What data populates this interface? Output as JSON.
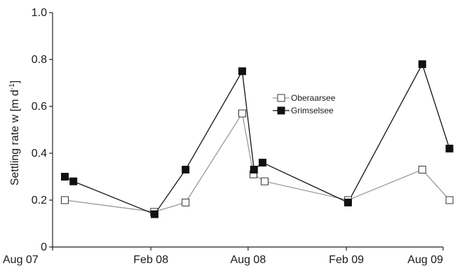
{
  "chart_data": {
    "type": "line",
    "title": "",
    "xlabel": "",
    "ylabel": "Settling rate w [m d",
    "ylabel_sup": "-1",
    "ylabel_close": "]",
    "ylim": [
      0,
      1.0
    ],
    "yticks": [
      "0",
      "0.2",
      "0.4",
      "0.6",
      "0.8",
      "1.0"
    ],
    "ytick_values": [
      0,
      0.2,
      0.4,
      0.6,
      0.8,
      1.0
    ],
    "xlim": [
      "2007-08-01",
      "2009-08-01"
    ],
    "xticks": [
      "Aug 07",
      "Feb 08",
      "Aug 08",
      "Feb 09",
      "Aug 09"
    ],
    "xtick_values": [
      "2007-08-01",
      "2008-02-01",
      "2008-08-01",
      "2009-02-01",
      "2009-08-01"
    ],
    "legend_position": "center-right",
    "grid": false,
    "series": [
      {
        "name": "Oberaarsee",
        "marker": "open-square",
        "color": "#9a9a9a",
        "points": [
          {
            "x": "2007-08-24",
            "y": 0.2
          },
          {
            "x": "2008-02-07",
            "y": 0.15
          },
          {
            "x": "2008-04-06",
            "y": 0.19
          },
          {
            "x": "2008-07-21",
            "y": 0.57
          },
          {
            "x": "2008-08-11",
            "y": 0.31
          },
          {
            "x": "2008-09-01",
            "y": 0.28
          },
          {
            "x": "2009-02-04",
            "y": 0.2
          },
          {
            "x": "2009-06-23",
            "y": 0.33
          },
          {
            "x": "2009-08-13",
            "y": 0.2
          }
        ]
      },
      {
        "name": "Grimselsee",
        "marker": "filled-square",
        "color": "#111111",
        "points": [
          {
            "x": "2007-08-24",
            "y": 0.3
          },
          {
            "x": "2007-09-09",
            "y": 0.28
          },
          {
            "x": "2008-02-08",
            "y": 0.14
          },
          {
            "x": "2008-04-06",
            "y": 0.33
          },
          {
            "x": "2008-07-21",
            "y": 0.75
          },
          {
            "x": "2008-08-12",
            "y": 0.33
          },
          {
            "x": "2008-08-28",
            "y": 0.36
          },
          {
            "x": "2009-02-04",
            "y": 0.19
          },
          {
            "x": "2009-06-23",
            "y": 0.78
          },
          {
            "x": "2009-08-13",
            "y": 0.42
          }
        ]
      }
    ]
  }
}
